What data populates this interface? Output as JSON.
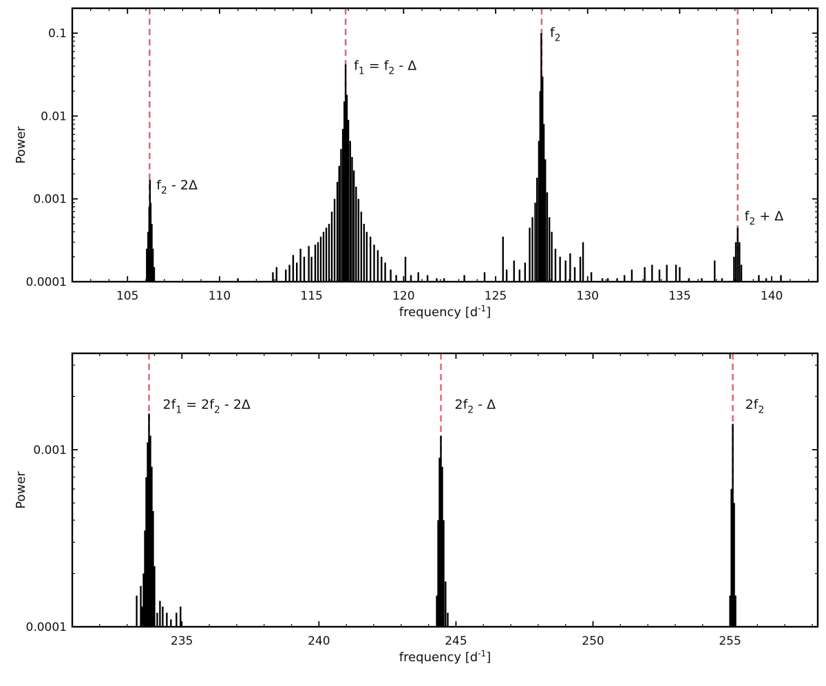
{
  "chart_data": [
    {
      "type": "bar",
      "panel": "top",
      "xlabel": "frequency [d",
      "xlabel_sup": "-1",
      "xlabel_end": "]",
      "ylabel": "Power",
      "xlim": [
        102.0,
        142.5
      ],
      "ylim": [
        0.0001,
        0.2
      ],
      "yscale": "log",
      "grid": false,
      "legend": "none",
      "x_ticks": [
        105,
        110,
        115,
        120,
        125,
        130,
        135,
        140
      ],
      "y_ticks": [
        {
          "value": 0.0001,
          "label": "0.0001"
        },
        {
          "value": 0.001,
          "label": "0.001"
        },
        {
          "value": 0.01,
          "label": "0.01"
        },
        {
          "value": 0.1,
          "label": "0.1"
        }
      ],
      "reference_lines": [
        106.2,
        116.85,
        127.5,
        138.15
      ],
      "reference_color": "#e06a78",
      "bar_color": "#000000",
      "annotations": [
        {
          "x": 106.2,
          "parts": [
            {
              "t": "f"
            },
            {
              "t": "2",
              "sub": true
            },
            {
              "t": " - 2Δ"
            }
          ],
          "anchor_power": 0.0013,
          "dx": 10
        },
        {
          "x": 116.85,
          "parts": [
            {
              "t": "f"
            },
            {
              "t": "1",
              "sub": true
            },
            {
              "t": " = f"
            },
            {
              "t": "2",
              "sub": true
            },
            {
              "t": " - Δ"
            }
          ],
          "anchor_power": 0.036,
          "dx": 12
        },
        {
          "x": 127.5,
          "parts": [
            {
              "t": "f"
            },
            {
              "t": "2",
              "sub": true
            }
          ],
          "anchor_power": 0.09,
          "dx": 12
        },
        {
          "x": 138.15,
          "parts": [
            {
              "t": "f"
            },
            {
              "t": "2",
              "sub": true
            },
            {
              "t": " + Δ"
            }
          ],
          "anchor_power": 0.00055,
          "dx": 10
        }
      ],
      "peaks": [
        {
          "x": 106.05,
          "y": 0.00025
        },
        {
          "x": 106.12,
          "y": 0.0004
        },
        {
          "x": 106.18,
          "y": 0.0008
        },
        {
          "x": 106.22,
          "y": 0.0017
        },
        {
          "x": 106.26,
          "y": 0.0009
        },
        {
          "x": 106.32,
          "y": 0.0005
        },
        {
          "x": 106.38,
          "y": 0.00025
        },
        {
          "x": 106.45,
          "y": 0.00015
        },
        {
          "x": 111.0,
          "y": 0.00011
        },
        {
          "x": 112.9,
          "y": 0.00013
        },
        {
          "x": 113.1,
          "y": 0.00015
        },
        {
          "x": 113.6,
          "y": 0.00014
        },
        {
          "x": 113.8,
          "y": 0.00016
        },
        {
          "x": 114.0,
          "y": 0.00021
        },
        {
          "x": 114.2,
          "y": 0.00017
        },
        {
          "x": 114.4,
          "y": 0.00025
        },
        {
          "x": 114.6,
          "y": 0.0002
        },
        {
          "x": 114.85,
          "y": 0.00027
        },
        {
          "x": 115.0,
          "y": 0.0002
        },
        {
          "x": 115.2,
          "y": 0.00028
        },
        {
          "x": 115.35,
          "y": 0.0003
        },
        {
          "x": 115.5,
          "y": 0.00035
        },
        {
          "x": 115.65,
          "y": 0.0004
        },
        {
          "x": 115.8,
          "y": 0.00045
        },
        {
          "x": 115.95,
          "y": 0.0005
        },
        {
          "x": 116.1,
          "y": 0.0007
        },
        {
          "x": 116.25,
          "y": 0.001
        },
        {
          "x": 116.4,
          "y": 0.0016
        },
        {
          "x": 116.5,
          "y": 0.0025
        },
        {
          "x": 116.6,
          "y": 0.004
        },
        {
          "x": 116.7,
          "y": 0.007
        },
        {
          "x": 116.78,
          "y": 0.015
        },
        {
          "x": 116.85,
          "y": 0.042
        },
        {
          "x": 116.92,
          "y": 0.018
        },
        {
          "x": 117.0,
          "y": 0.009
        },
        {
          "x": 117.1,
          "y": 0.005
        },
        {
          "x": 117.2,
          "y": 0.0032
        },
        {
          "x": 117.3,
          "y": 0.0022
        },
        {
          "x": 117.42,
          "y": 0.0014
        },
        {
          "x": 117.55,
          "y": 0.001
        },
        {
          "x": 117.7,
          "y": 0.0007
        },
        {
          "x": 117.85,
          "y": 0.0005
        },
        {
          "x": 118.0,
          "y": 0.0004
        },
        {
          "x": 118.2,
          "y": 0.00035
        },
        {
          "x": 118.4,
          "y": 0.00028
        },
        {
          "x": 118.6,
          "y": 0.00024
        },
        {
          "x": 118.8,
          "y": 0.0002
        },
        {
          "x": 119.0,
          "y": 0.00017
        },
        {
          "x": 119.3,
          "y": 0.00014
        },
        {
          "x": 119.6,
          "y": 0.00012
        },
        {
          "x": 120.1,
          "y": 0.0002
        },
        {
          "x": 120.4,
          "y": 0.00012
        },
        {
          "x": 120.8,
          "y": 0.00013
        },
        {
          "x": 121.3,
          "y": 0.00012
        },
        {
          "x": 121.8,
          "y": 0.00011
        },
        {
          "x": 122.2,
          "y": 0.00011
        },
        {
          "x": 123.3,
          "y": 0.00012
        },
        {
          "x": 124.4,
          "y": 0.00013
        },
        {
          "x": 125.4,
          "y": 0.00035
        },
        {
          "x": 125.6,
          "y": 0.00014
        },
        {
          "x": 126.0,
          "y": 0.00018
        },
        {
          "x": 126.3,
          "y": 0.00014
        },
        {
          "x": 126.6,
          "y": 0.00017
        },
        {
          "x": 126.85,
          "y": 0.00045
        },
        {
          "x": 127.0,
          "y": 0.0006
        },
        {
          "x": 127.15,
          "y": 0.0009
        },
        {
          "x": 127.25,
          "y": 0.0018
        },
        {
          "x": 127.35,
          "y": 0.005
        },
        {
          "x": 127.42,
          "y": 0.02
        },
        {
          "x": 127.48,
          "y": 0.1
        },
        {
          "x": 127.55,
          "y": 0.03
        },
        {
          "x": 127.62,
          "y": 0.008
        },
        {
          "x": 127.7,
          "y": 0.003
        },
        {
          "x": 127.8,
          "y": 0.0012
        },
        {
          "x": 127.92,
          "y": 0.0006
        },
        {
          "x": 128.05,
          "y": 0.0004
        },
        {
          "x": 128.25,
          "y": 0.00025
        },
        {
          "x": 128.5,
          "y": 0.0002
        },
        {
          "x": 128.8,
          "y": 0.00018
        },
        {
          "x": 129.05,
          "y": 0.00022
        },
        {
          "x": 129.3,
          "y": 0.00015
        },
        {
          "x": 129.6,
          "y": 0.0002
        },
        {
          "x": 129.75,
          "y": 0.0003
        },
        {
          "x": 130.2,
          "y": 0.00013
        },
        {
          "x": 130.8,
          "y": 0.00011
        },
        {
          "x": 131.1,
          "y": 0.00011
        },
        {
          "x": 131.6,
          "y": 0.00011
        },
        {
          "x": 132.0,
          "y": 0.00012
        },
        {
          "x": 132.4,
          "y": 0.00014
        },
        {
          "x": 133.1,
          "y": 0.00015
        },
        {
          "x": 133.5,
          "y": 0.00016
        },
        {
          "x": 133.9,
          "y": 0.00014
        },
        {
          "x": 134.3,
          "y": 0.00016
        },
        {
          "x": 134.8,
          "y": 0.00016
        },
        {
          "x": 135.0,
          "y": 0.00015
        },
        {
          "x": 135.5,
          "y": 0.00011
        },
        {
          "x": 136.2,
          "y": 0.00011
        },
        {
          "x": 136.9,
          "y": 0.00018
        },
        {
          "x": 137.3,
          "y": 0.00011
        },
        {
          "x": 137.95,
          "y": 0.0002
        },
        {
          "x": 138.05,
          "y": 0.0003
        },
        {
          "x": 138.15,
          "y": 0.00045
        },
        {
          "x": 138.25,
          "y": 0.0003
        },
        {
          "x": 138.35,
          "y": 0.00016
        },
        {
          "x": 139.3,
          "y": 0.00012
        },
        {
          "x": 139.7,
          "y": 0.00011
        },
        {
          "x": 140.5,
          "y": 0.00012
        }
      ]
    },
    {
      "type": "bar",
      "panel": "bottom",
      "xlabel": "frequency [d",
      "xlabel_sup": "-1",
      "xlabel_end": "]",
      "ylabel": "Power",
      "xlim": [
        231.0,
        258.2
      ],
      "ylim": [
        0.0001,
        0.0035
      ],
      "yscale": "log",
      "grid": false,
      "legend": "none",
      "x_ticks": [
        235,
        240,
        245,
        250,
        255
      ],
      "y_ticks": [
        {
          "value": 0.0001,
          "label": "0.0001"
        },
        {
          "value": 0.001,
          "label": "0.001"
        }
      ],
      "reference_lines": [
        233.8,
        244.45,
        255.1
      ],
      "reference_color": "#e06a78",
      "bar_color": "#000000",
      "annotations": [
        {
          "x": 233.8,
          "parts": [
            {
              "t": "2f"
            },
            {
              "t": "1",
              "sub": true
            },
            {
              "t": " = 2f"
            },
            {
              "t": "2",
              "sub": true
            },
            {
              "t": " - 2Δ"
            }
          ],
          "anchor_power": 0.0017,
          "dx": 20
        },
        {
          "x": 244.45,
          "parts": [
            {
              "t": "2f"
            },
            {
              "t": "2",
              "sub": true
            },
            {
              "t": " - Δ"
            }
          ],
          "anchor_power": 0.0017,
          "dx": 20
        },
        {
          "x": 255.1,
          "parts": [
            {
              "t": "2f"
            },
            {
              "t": "2",
              "sub": true
            }
          ],
          "anchor_power": 0.0017,
          "dx": 18
        }
      ],
      "peaks": [
        {
          "x": 233.35,
          "y": 0.00015
        },
        {
          "x": 233.5,
          "y": 0.00017
        },
        {
          "x": 233.55,
          "y": 0.00013
        },
        {
          "x": 233.6,
          "y": 0.0002
        },
        {
          "x": 233.65,
          "y": 0.00035
        },
        {
          "x": 233.7,
          "y": 0.0007
        },
        {
          "x": 233.75,
          "y": 0.0011
        },
        {
          "x": 233.8,
          "y": 0.0016
        },
        {
          "x": 233.85,
          "y": 0.0012
        },
        {
          "x": 233.9,
          "y": 0.0008
        },
        {
          "x": 233.95,
          "y": 0.00045
        },
        {
          "x": 234.0,
          "y": 0.00022
        },
        {
          "x": 234.1,
          "y": 0.00012
        },
        {
          "x": 234.2,
          "y": 0.00014
        },
        {
          "x": 234.3,
          "y": 0.00013
        },
        {
          "x": 234.45,
          "y": 0.00012
        },
        {
          "x": 234.6,
          "y": 0.00011
        },
        {
          "x": 234.8,
          "y": 0.00012
        },
        {
          "x": 234.95,
          "y": 0.00013
        },
        {
          "x": 244.3,
          "y": 0.00015
        },
        {
          "x": 244.35,
          "y": 0.0004
        },
        {
          "x": 244.4,
          "y": 0.0009
        },
        {
          "x": 244.45,
          "y": 0.0012
        },
        {
          "x": 244.5,
          "y": 0.0008
        },
        {
          "x": 244.55,
          "y": 0.0004
        },
        {
          "x": 244.62,
          "y": 0.00018
        },
        {
          "x": 244.7,
          "y": 0.00012
        },
        {
          "x": 255.0,
          "y": 0.00015
        },
        {
          "x": 255.05,
          "y": 0.0006
        },
        {
          "x": 255.1,
          "y": 0.0014
        },
        {
          "x": 255.15,
          "y": 0.0005
        },
        {
          "x": 255.2,
          "y": 0.00015
        }
      ]
    }
  ]
}
